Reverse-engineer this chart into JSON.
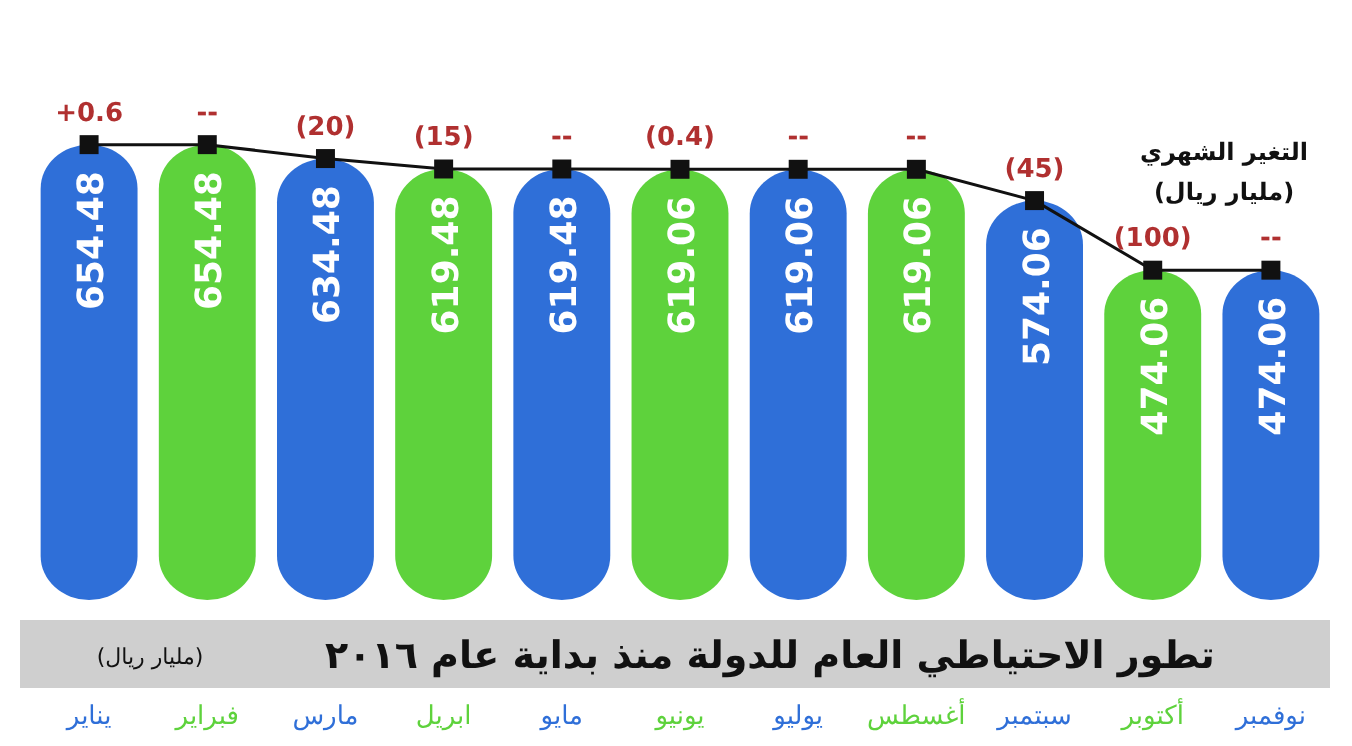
{
  "chart_data": {
    "type": "bar",
    "title": "تطور الاحتياطي العام للدولة منذ بداية عام ٢٠١٦",
    "subtitle": "(مليار ريال)",
    "categories": [
      "يناير",
      "فبراير",
      "مارس",
      "ابريل",
      "مايو",
      "يونيو",
      "يوليو",
      "أغسطس",
      "سبتمبر",
      "أكتوبر",
      "نوفمبر"
    ],
    "tick_labels": "x",
    "data_labels": true,
    "marker": "square",
    "series": [
      {
        "colors": [
          "#2f6fd8",
          "#5ed23c",
          "#2f6fd8",
          "#5ed23c",
          "#2f6fd8",
          "#5ed23c",
          "#2f6fd8",
          "#5ed23c",
          "#2f6fd8",
          "#5ed23c",
          "#2f6fd8"
        ],
        "values": [
          654.48,
          654.48,
          634.48,
          619.48,
          619.48,
          619.06,
          619.06,
          619.06,
          574.06,
          474.06,
          474.06
        ]
      },
      {
        "type": "line",
        "color": "#111111",
        "values": [
          654.48,
          654.48,
          634.48,
          619.48,
          619.48,
          619.06,
          619.06,
          619.06,
          574.06,
          474.06,
          474.06
        ],
        "value_labels": [
          null,
          null,
          null,
          null,
          null,
          null,
          null,
          null,
          null,
          null,
          null
        ]
      }
    ],
    "annotations": [
      "التغير الشهري (مليار ريال)",
      {
        "text": "+0.6",
        "x": "يناير",
        "y": 654.48
      },
      {
        "text": "--",
        "x": "فبراير",
        "y": 654.48
      },
      {
        "text": "(20)",
        "x": "مارس",
        "y": 634.48
      },
      {
        "text": "(15)",
        "x": "ابريل",
        "y": 619.48
      },
      {
        "text": "--",
        "x": "مايو",
        "y": 619.48
      },
      {
        "text": "(0.4)",
        "x": "يونيو",
        "y": 619.06
      },
      {
        "text": "--",
        "x": "يوليو",
        "y": 619.06
      },
      {
        "text": "--",
        "x": "أغسطس",
        "y": 619.06
      },
      {
        "text": "(45)",
        "x": "سبتمبر",
        "y": 574.06
      },
      {
        "text": "(100)",
        "x": "أكتوبر",
        "y": 474.06
      },
      {
        "text": "--",
        "x": "نوفمبر",
        "y": 474.06
      }
    ]
  }
}
